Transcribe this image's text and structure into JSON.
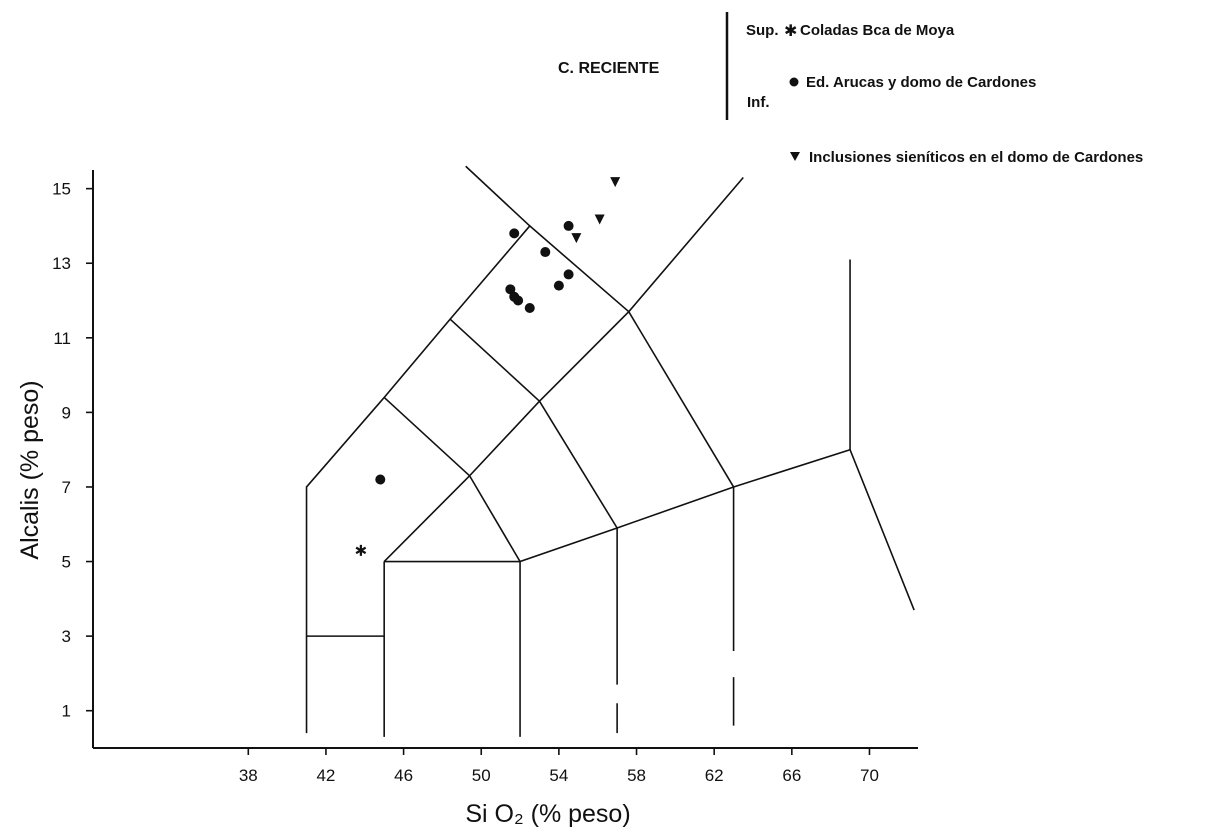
{
  "chart_data": {
    "type": "scatter",
    "xlabel": "Si O₂ (% peso)",
    "ylabel": "Alcalis (% peso)",
    "x_ticks": [
      38,
      42,
      46,
      50,
      54,
      58,
      62,
      66,
      70
    ],
    "y_ticks": [
      1,
      3,
      5,
      7,
      9,
      11,
      13,
      15
    ],
    "xlim": [
      30,
      72.5
    ],
    "ylim": [
      0,
      15.5
    ],
    "legend": {
      "group_label": "C. RECIENTE",
      "sup_label": "Sup.",
      "inf_label": "Inf.",
      "entries": [
        {
          "marker": "asterisk",
          "label": "Coladas Bca de Moya"
        },
        {
          "marker": "circle",
          "label": "Ed. Arucas y domo de Cardones"
        },
        {
          "marker": "triangle-down",
          "label": "Inclusiones sieníticos en el domo de Cardones"
        }
      ],
      "position": "top-right"
    },
    "series": [
      {
        "name": "Coladas Bca de Moya",
        "marker": "asterisk",
        "points": [
          [
            43.8,
            5.3
          ]
        ]
      },
      {
        "name": "Ed. Arucas y domo de Cardones",
        "marker": "circle",
        "points": [
          [
            44.8,
            7.2
          ],
          [
            51.7,
            13.8
          ],
          [
            53.3,
            13.3
          ],
          [
            54.5,
            14.0
          ],
          [
            51.5,
            12.3
          ],
          [
            51.7,
            12.1
          ],
          [
            51.9,
            12.0
          ],
          [
            52.5,
            11.8
          ],
          [
            54.0,
            12.4
          ],
          [
            54.5,
            12.7
          ]
        ]
      },
      {
        "name": "Inclusiones sieníticos en el domo de Cardones",
        "marker": "triangle-down",
        "points": [
          [
            56.9,
            15.2
          ],
          [
            56.1,
            14.2
          ],
          [
            54.9,
            13.7
          ]
        ]
      }
    ]
  }
}
